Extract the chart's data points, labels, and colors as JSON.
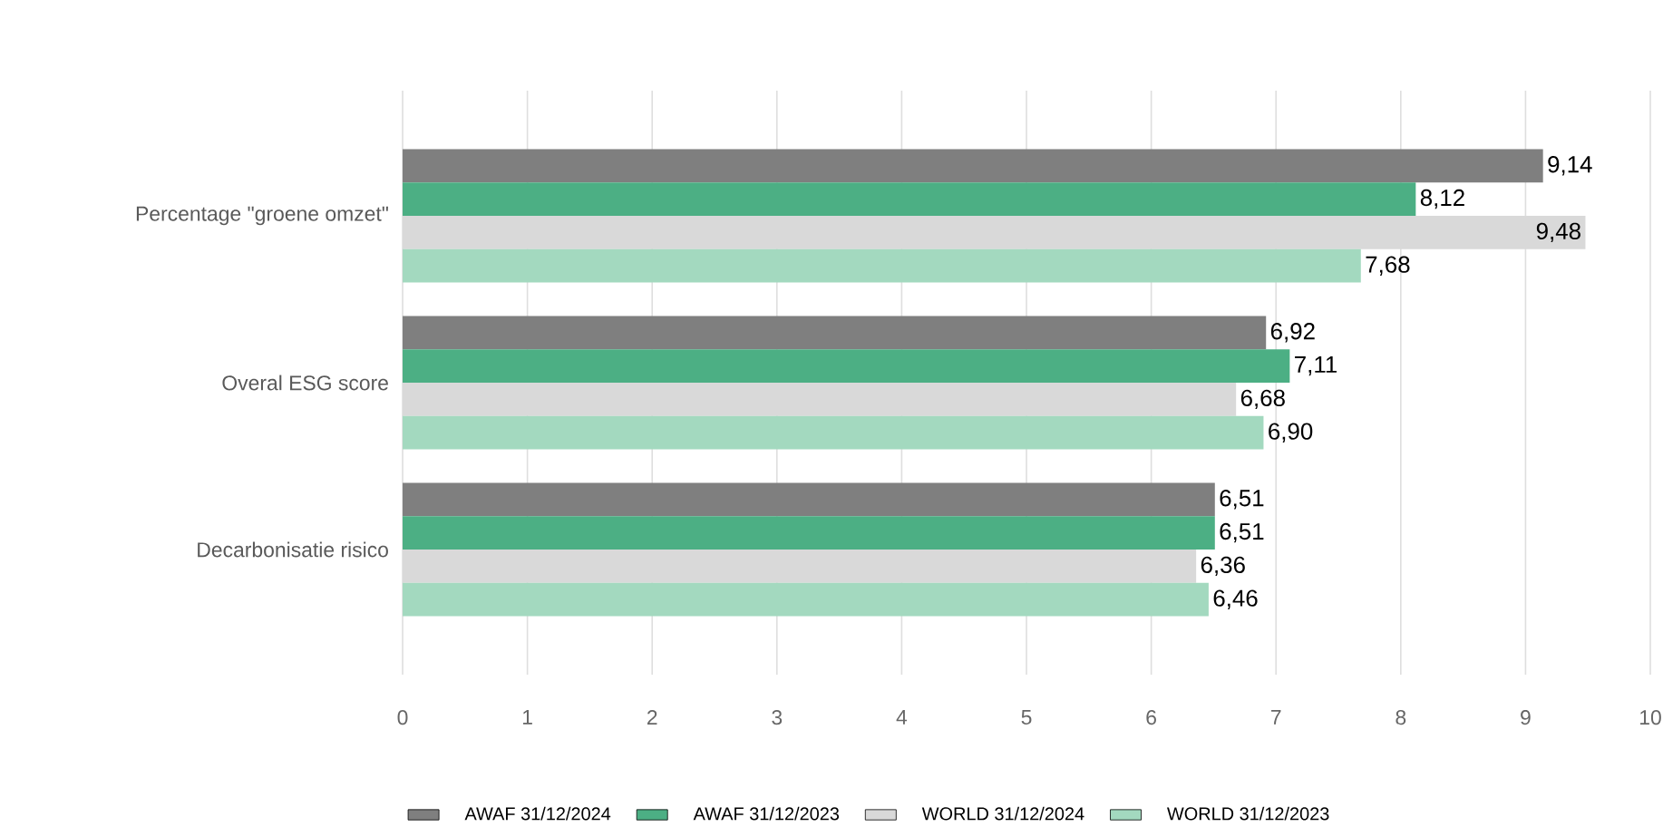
{
  "chart_data": {
    "type": "bar",
    "orientation": "horizontal",
    "categories": [
      "Percentage \"groene omzet\"",
      "Overal ESG score",
      "Decarbonisatie risico"
    ],
    "series": [
      {
        "name": "AWAF 31/12/2024",
        "color": "#7f7f7f",
        "values": [
          9.14,
          6.92,
          6.51
        ],
        "value_labels": [
          "9,14",
          "6,92",
          "6,51"
        ]
      },
      {
        "name": "AWAF 31/12/2023",
        "color": "#4caf84",
        "values": [
          8.12,
          7.11,
          6.51
        ],
        "value_labels": [
          "8,12",
          "7,11",
          "6,51"
        ]
      },
      {
        "name": "WORLD 31/12/2024",
        "color": "#d9d9d9",
        "values": [
          9.48,
          6.68,
          6.36
        ],
        "value_labels": [
          "9,48",
          "6,68",
          "6,36"
        ]
      },
      {
        "name": "WORLD 31/12/2023",
        "color": "#a3d9bf",
        "values": [
          7.68,
          6.9,
          6.46
        ],
        "value_labels": [
          "7,68",
          "6,90",
          "6,46"
        ]
      }
    ],
    "xlim": [
      0,
      10
    ],
    "xticks": [
      0,
      1,
      2,
      3,
      4,
      5,
      6,
      7,
      8,
      9,
      10
    ],
    "grid": "x",
    "legend": "bottom"
  }
}
